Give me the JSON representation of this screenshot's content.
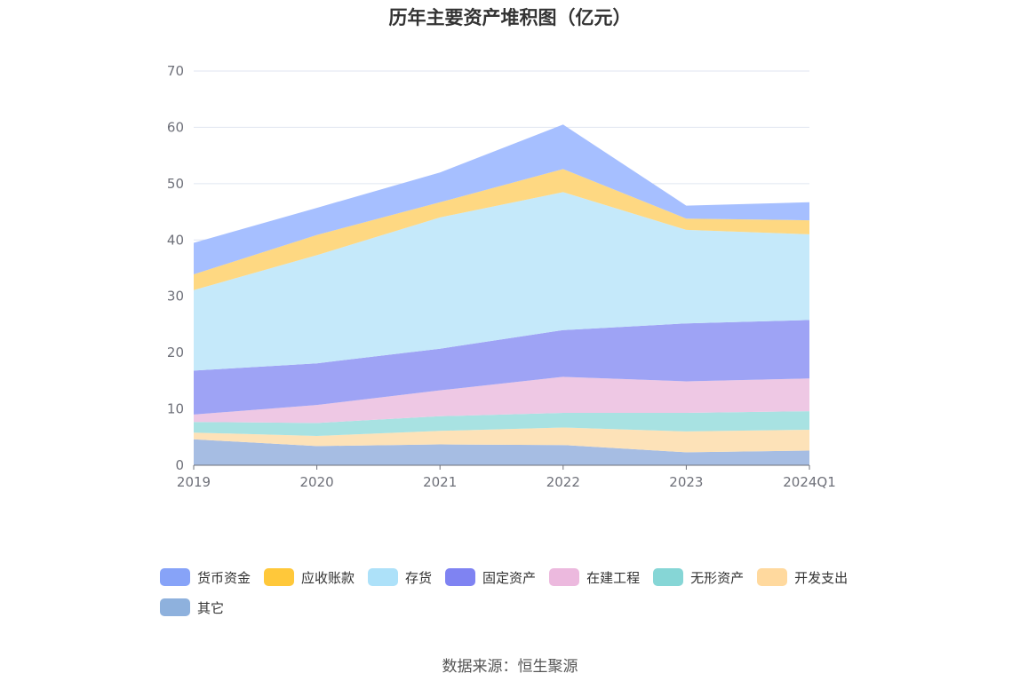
{
  "chart_data": {
    "type": "area",
    "stacked": true,
    "title": "历年主要资产堆积图（亿元）",
    "categories": [
      "2019",
      "2020",
      "2021",
      "2022",
      "2023",
      "2024Q1"
    ],
    "ylim": [
      0,
      70
    ],
    "yticks": [
      0,
      10,
      20,
      30,
      40,
      50,
      60,
      70
    ],
    "grid": true,
    "legend_position": "bottom",
    "series": [
      {
        "name": "其它",
        "color": "#a6bde3",
        "values": [
          4.6,
          3.4,
          3.7,
          3.6,
          2.3,
          2.6
        ]
      },
      {
        "name": "开发支出",
        "color": "#fde2b8",
        "values": [
          1.2,
          1.8,
          2.4,
          3.1,
          3.7,
          3.7
        ]
      },
      {
        "name": "无形资产",
        "color": "#a8e2e2",
        "values": [
          1.9,
          2.3,
          2.6,
          2.6,
          3.3,
          3.3
        ]
      },
      {
        "name": "在建工程",
        "color": "#eec8e4",
        "values": [
          1.3,
          3.2,
          4.6,
          6.4,
          5.6,
          5.8
        ]
      },
      {
        "name": "固定资产",
        "color": "#9ea3f5",
        "values": [
          7.8,
          7.4,
          7.4,
          8.3,
          10.3,
          10.4
        ]
      },
      {
        "name": "存货",
        "color": "#c5e9fa",
        "values": [
          14.3,
          19.2,
          23.3,
          24.5,
          16.6,
          15.2
        ]
      },
      {
        "name": "应收账款",
        "color": "#fed882",
        "values": [
          2.8,
          3.6,
          2.7,
          4.1,
          2.0,
          2.5
        ]
      },
      {
        "name": "货币资金",
        "color": "#a6bfff",
        "values": [
          5.6,
          4.8,
          5.3,
          7.9,
          2.3,
          3.2
        ]
      }
    ]
  },
  "legend": {
    "items": [
      {
        "label": "货币资金",
        "color": "#87a3f8"
      },
      {
        "label": "应收账款",
        "color": "#ffc83a"
      },
      {
        "label": "存货",
        "color": "#ade1f9"
      },
      {
        "label": "固定资产",
        "color": "#7f83f2"
      },
      {
        "label": "在建工程",
        "color": "#ecb9de"
      },
      {
        "label": "无形资产",
        "color": "#86d6d6"
      },
      {
        "label": "开发支出",
        "color": "#ffd99e"
      },
      {
        "label": "其它",
        "color": "#8eb1dd"
      }
    ]
  },
  "source": "数据来源：恒生聚源"
}
